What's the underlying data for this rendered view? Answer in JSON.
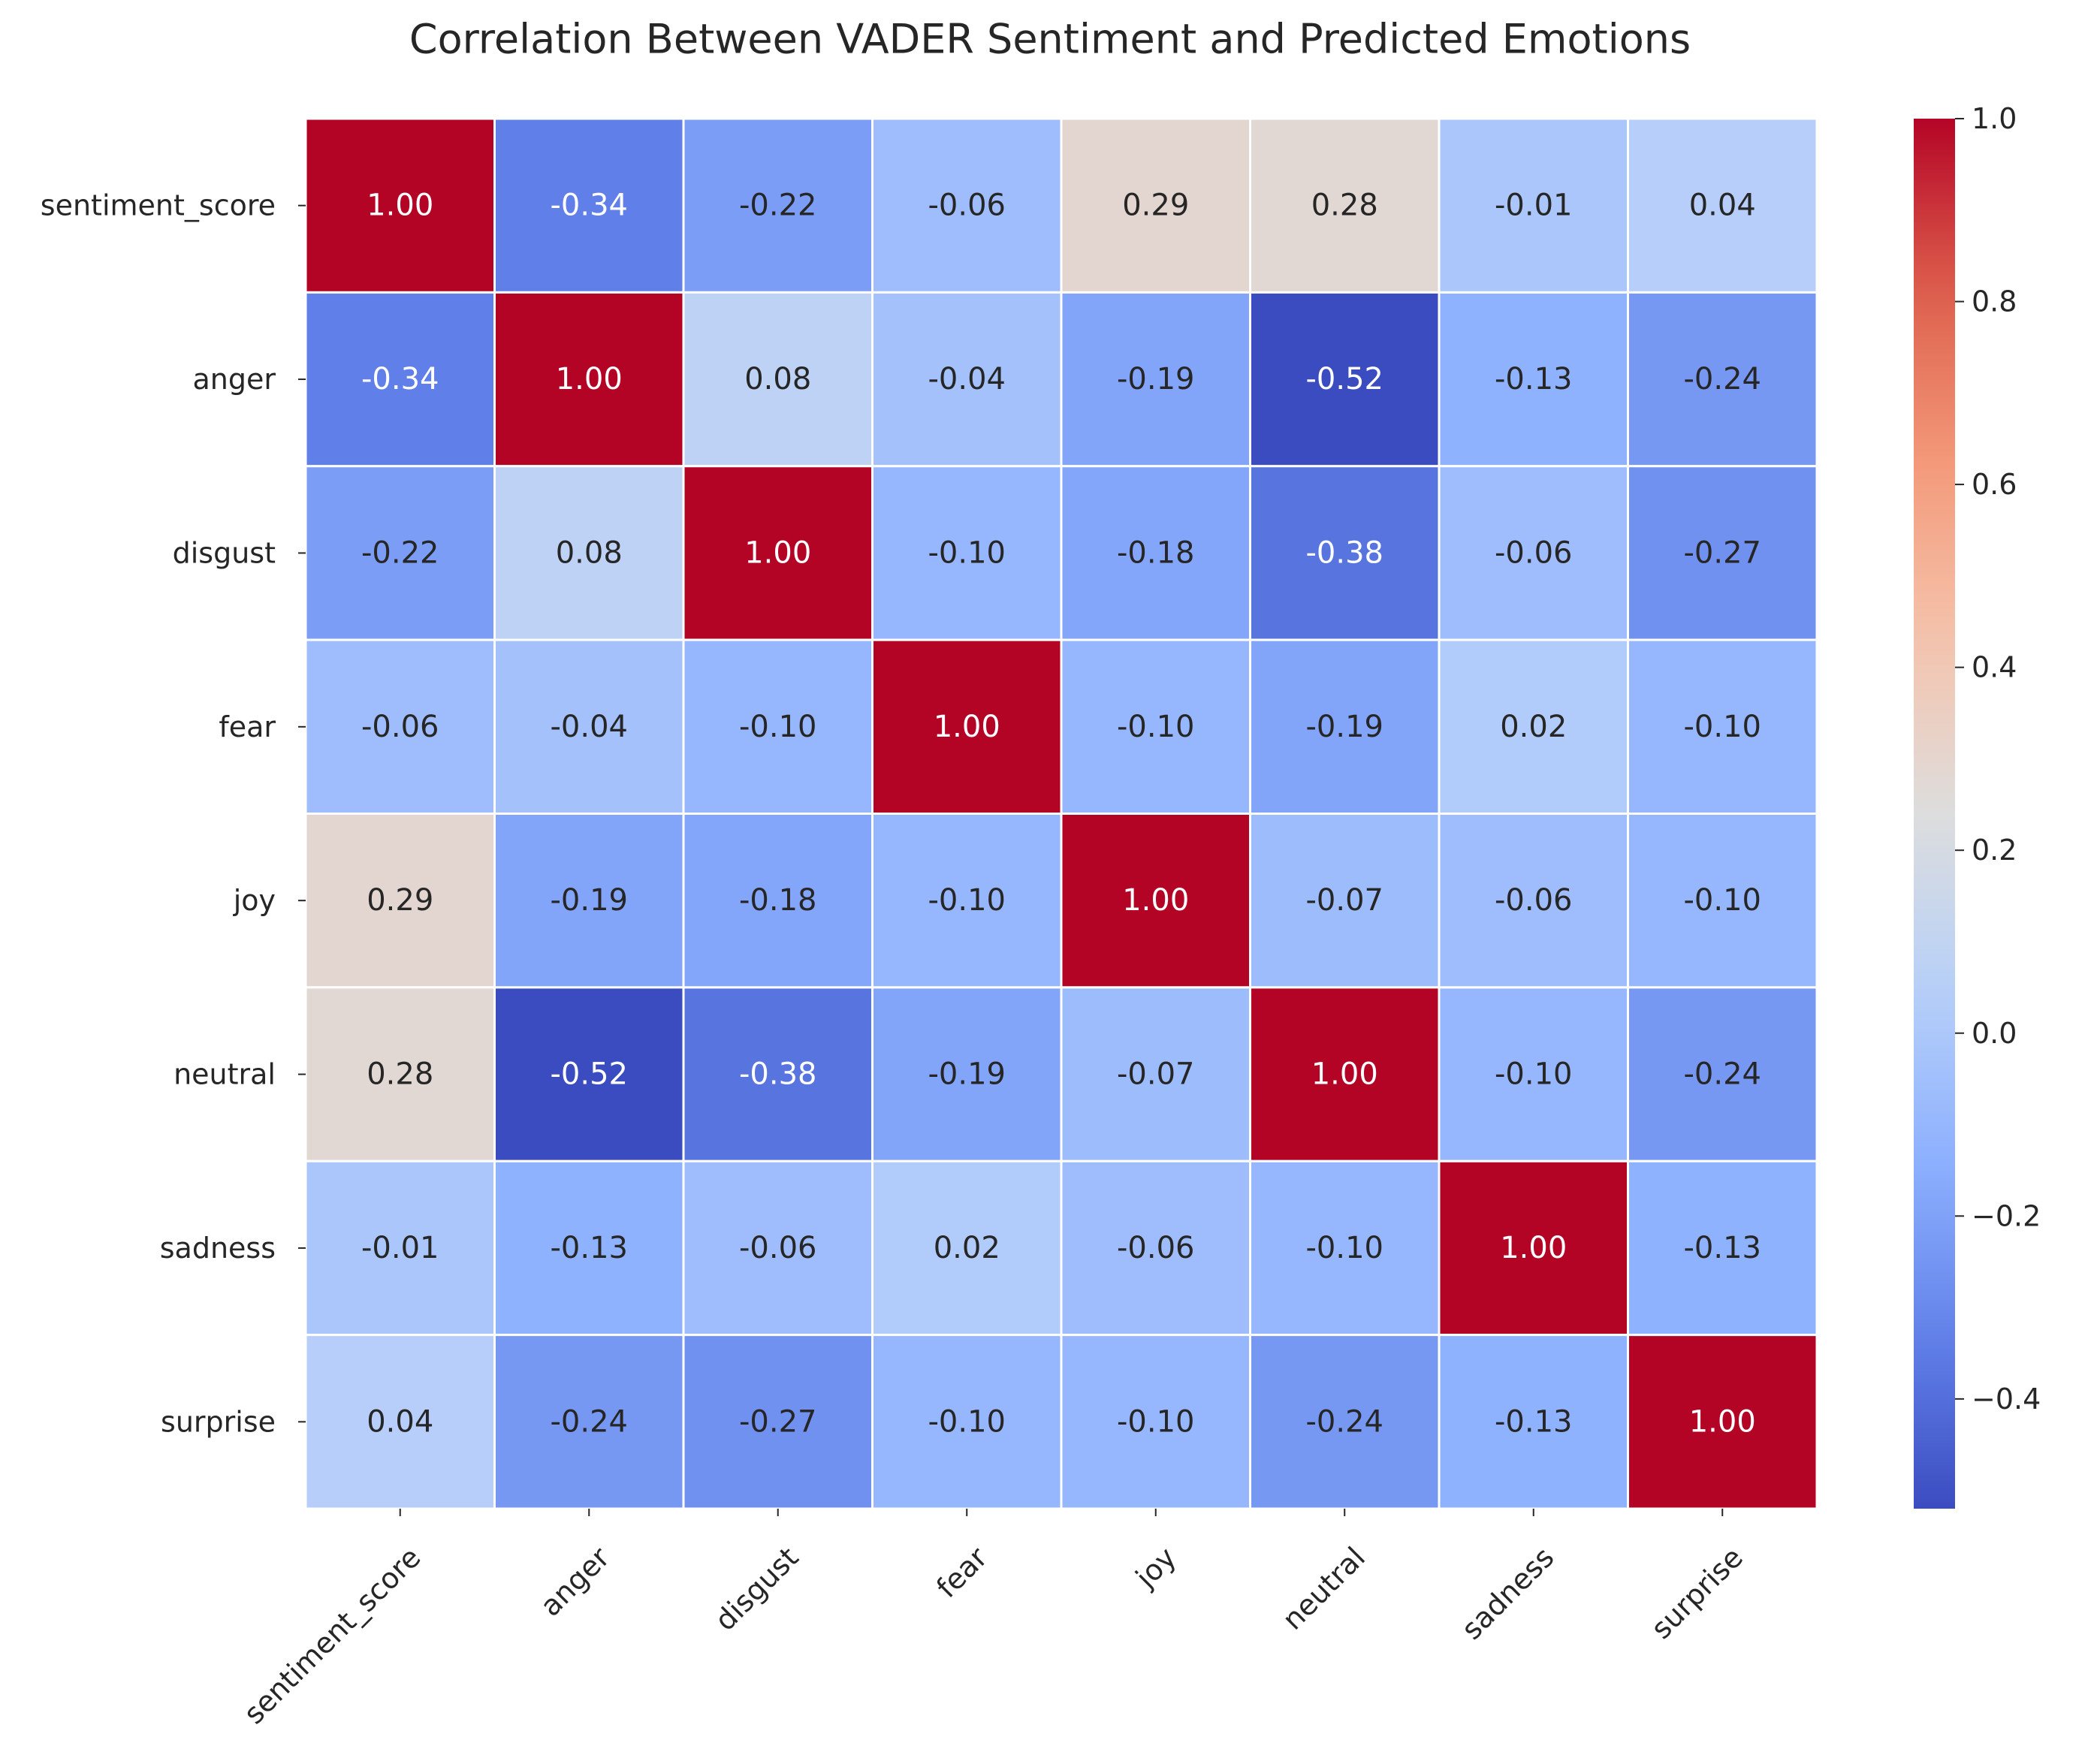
{
  "chart_data": {
    "type": "heatmap",
    "title": "Correlation Between VADER Sentiment and Predicted Emotions",
    "xlabel": "",
    "ylabel": "",
    "x_labels": [
      "sentiment_score",
      "anger",
      "disgust",
      "fear",
      "joy",
      "neutral",
      "sadness",
      "surprise"
    ],
    "y_labels": [
      "sentiment_score",
      "anger",
      "disgust",
      "fear",
      "joy",
      "neutral",
      "sadness",
      "surprise"
    ],
    "values": [
      [
        1.0,
        -0.34,
        -0.22,
        -0.06,
        0.29,
        0.28,
        -0.01,
        0.04
      ],
      [
        -0.34,
        1.0,
        0.08,
        -0.04,
        -0.19,
        -0.52,
        -0.13,
        -0.24
      ],
      [
        -0.22,
        0.08,
        1.0,
        -0.1,
        -0.18,
        -0.38,
        -0.06,
        -0.27
      ],
      [
        -0.06,
        -0.04,
        -0.1,
        1.0,
        -0.1,
        -0.19,
        0.02,
        -0.1
      ],
      [
        0.29,
        -0.19,
        -0.18,
        -0.1,
        1.0,
        -0.07,
        -0.06,
        -0.1
      ],
      [
        0.28,
        -0.52,
        -0.38,
        -0.19,
        -0.07,
        1.0,
        -0.1,
        -0.24
      ],
      [
        -0.01,
        -0.13,
        -0.06,
        0.02,
        -0.06,
        -0.1,
        1.0,
        -0.13
      ],
      [
        0.04,
        -0.24,
        -0.27,
        -0.1,
        -0.1,
        -0.24,
        -0.13,
        1.0
      ]
    ],
    "value_format": "0.00",
    "colormap": "coolwarm",
    "colorbar": {
      "range": [
        -0.52,
        1.0
      ],
      "ticks": [
        -0.4,
        -0.2,
        0.0,
        0.2,
        0.4,
        0.6,
        0.8,
        1.0
      ],
      "tick_labels": [
        "−0.4",
        "−0.2",
        "0.0",
        "0.2",
        "0.4",
        "0.6",
        "0.8",
        "1.0"
      ]
    },
    "grid": false,
    "cell_separator_color": "#ffffff"
  }
}
